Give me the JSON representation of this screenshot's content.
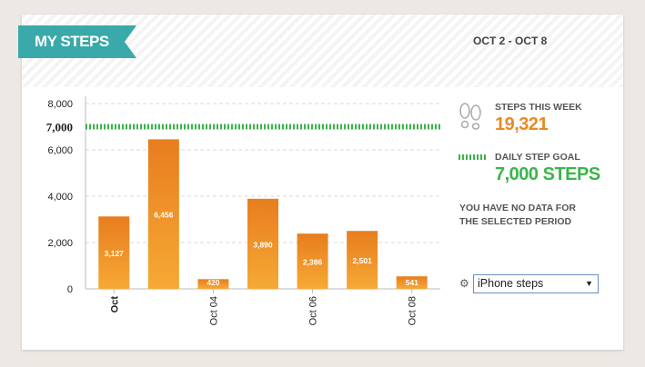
{
  "header": {
    "title": "MY STEPS",
    "date_range": "OCT 2 - OCT 8"
  },
  "summary": {
    "steps_label": "STEPS THIS  WEEK",
    "steps_value": "19,321",
    "goal_label": "DAILY STEP GOAL",
    "goal_value": "7,000 STEPS",
    "no_data_line1": "YOU HAVE NO DATA FOR",
    "no_data_line2": "THE SELECTED PERIOD"
  },
  "source_select": {
    "value": "iPhone steps"
  },
  "icons": {
    "steps": "footprints-icon",
    "goal": "dotted-line-icon",
    "settings": "gear-icon",
    "dropdown": "chevron-down-icon"
  },
  "colors": {
    "bar_top": "#e87d1e",
    "bar_bottom": "#f6a935",
    "goal_line": "#3ab54a",
    "ribbon": "#3aa9a9"
  },
  "chart_data": {
    "type": "bar",
    "categories": [
      "Oct",
      "",
      "Oct 04",
      "",
      "Oct 06",
      "",
      "Oct 08"
    ],
    "values": [
      3127,
      6456,
      420,
      3890,
      2386,
      2501,
      541
    ],
    "value_labels": [
      "3,127",
      "6,456",
      "420",
      "3,890",
      "2,386",
      "2,501",
      "541"
    ],
    "y_ticks": [
      0,
      2000,
      4000,
      6000,
      8000
    ],
    "y_tick_labels": [
      "0",
      "2,000",
      "4,000",
      "6,000",
      "8,000"
    ],
    "goal": 7000,
    "goal_label": "7,000",
    "ylim": [
      0,
      8000
    ],
    "grid": true
  }
}
